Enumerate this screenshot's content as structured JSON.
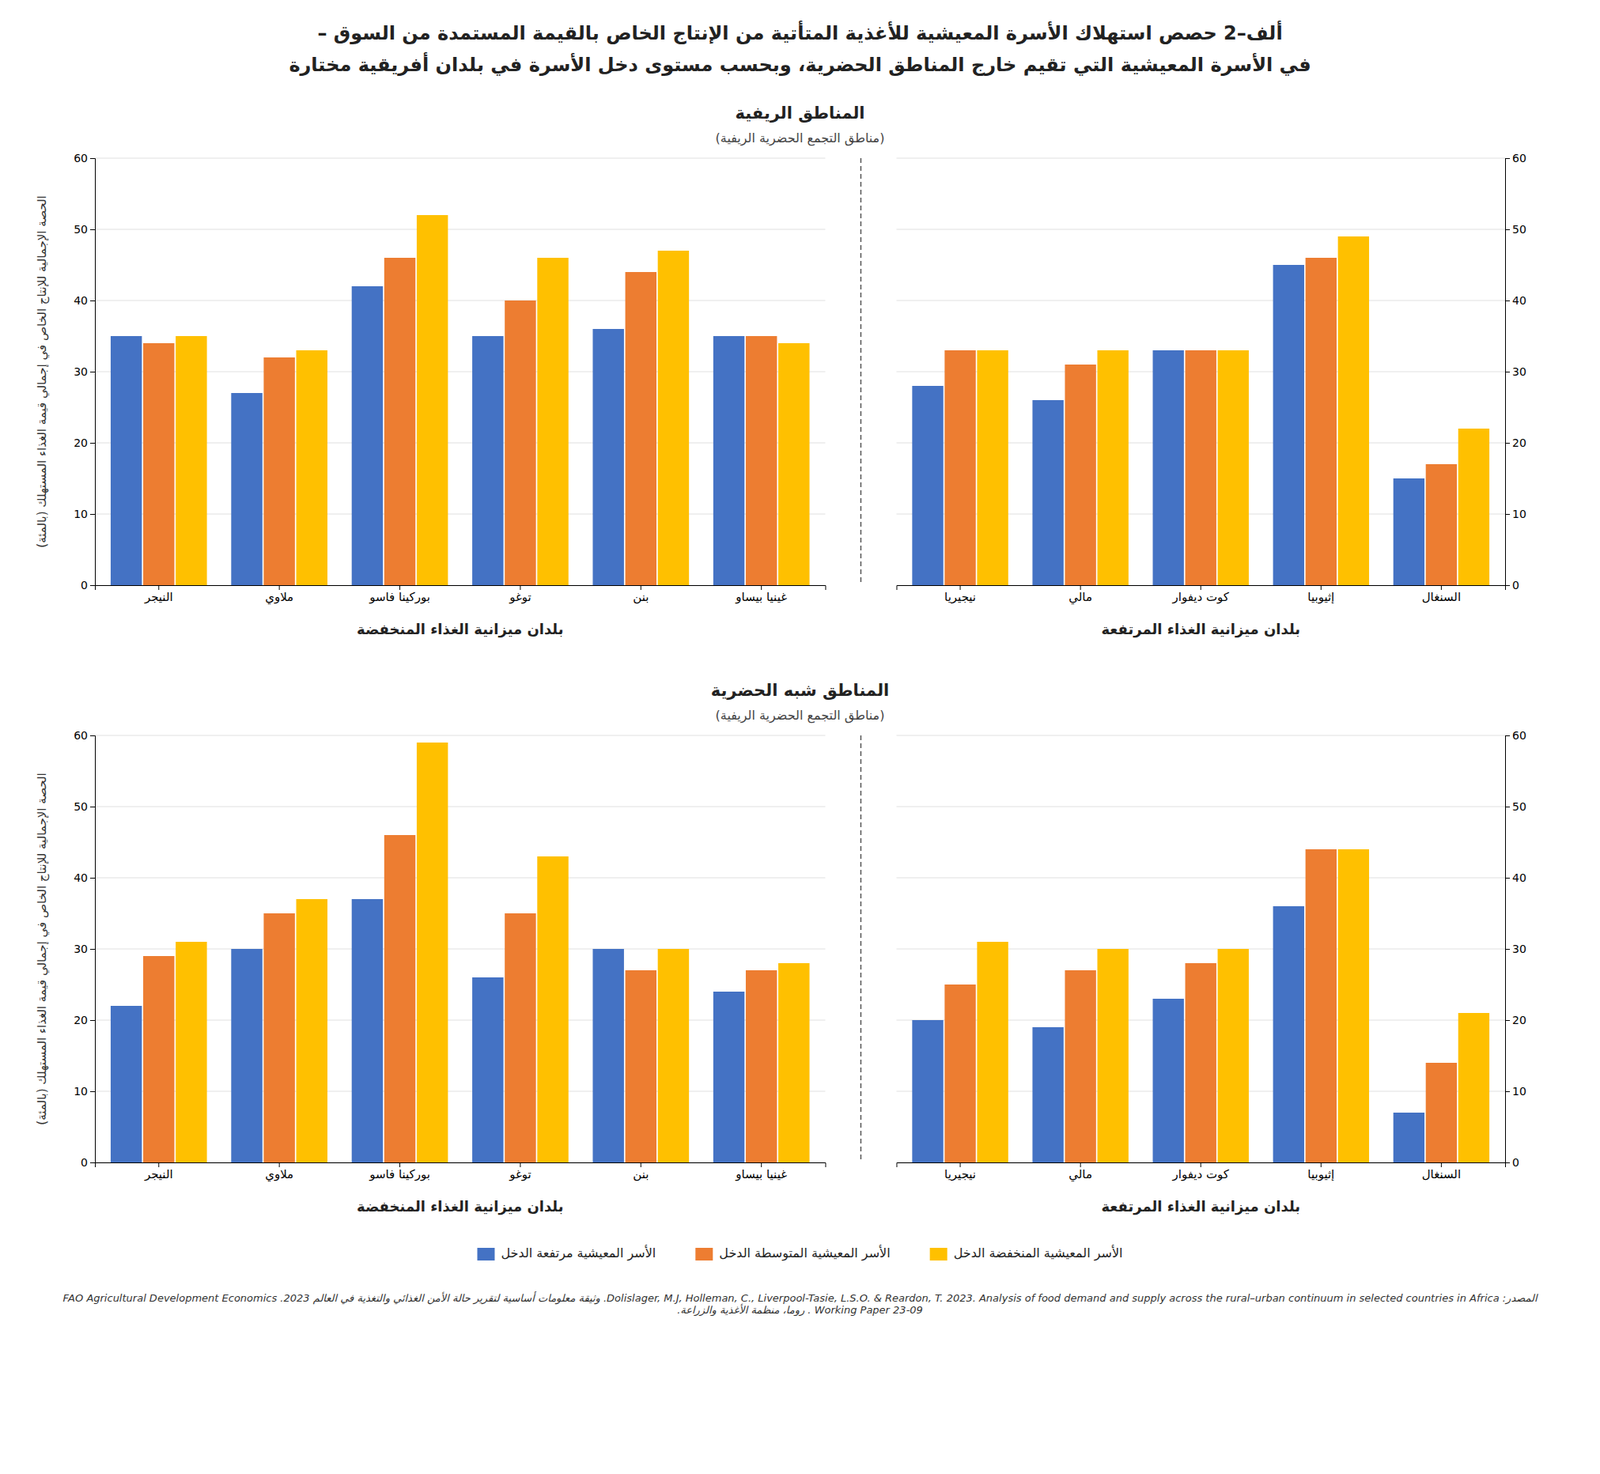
{
  "title": [
    "ألف–2 حصص استهلاك الأسرة المعيشية للأغذية المتأتية من الإنتاج الخاص بالقيمة المستمدة من السوق –",
    "في الأسرة المعيشية التي تقيم خارج المناطق الحضرية، وبحسب مستوى دخل الأسرة في بلدان أفريقية مختارة"
  ],
  "annotations": [
    "المصدر: Dolislager, M.J, Holleman, C., Liverpool-Tasie, L.S.O. & Reardon, T. 2023. Analysis of food demand and supply across the rural–urban continuum in selected countries in Africa. وثيقة معلومات أساسية لتقرير حالة الأمن الغذائي والتغذية في العالم 2023. FAO Agricultural Development Economics Working Paper 23-09 . روما، منظمة الأغذية والزراعة."
  ],
  "chart_data": [
    {
      "type": "bar",
      "title": "المناطق الريفية",
      "subtitle": "(مناطق التجمع الحضرية الريفية)",
      "ylabel": "الحصة الإجمالية للإنتاج الخاص في إجمالي قيمة الغذاء المستهلك (بالمئة)",
      "xlabel": "بلدان ميزانية الغذاء المنخفضة",
      "categories": [
        "النيجر",
        "ملاوي",
        "بوركينا فاسو",
        "توغو",
        "بنن",
        "غينيا بيساو"
      ],
      "series": [
        {
          "name": "الأسر المعيشية مرتفعة الدخل",
          "color": "#4472C4",
          "values": [
            35,
            27,
            42,
            35,
            36,
            35
          ]
        },
        {
          "name": "الأسر المعيشية المتوسطة الدخل",
          "color": "#ED7D31",
          "values": [
            34,
            32,
            46,
            40,
            44,
            35
          ]
        },
        {
          "name": "الأسر المعيشية المنخفضة الدخل",
          "color": "#FFC000",
          "values": [
            35,
            33,
            52,
            46,
            47,
            34
          ]
        }
      ],
      "ylim": [
        0,
        60
      ],
      "yticks": [
        0,
        10,
        20,
        30,
        40,
        50,
        60
      ],
      "grid": true,
      "legend": "bottom"
    },
    {
      "type": "bar",
      "xlabel": "بلدان ميزانية الغذاء المرتفعة",
      "categories": [
        "نيجيريا",
        "مالي",
        "كوت ديفوار",
        "إثيوبيا",
        "السنغال"
      ],
      "series": [
        {
          "color": "#4472C4",
          "values": [
            28,
            26,
            33,
            45,
            15
          ]
        },
        {
          "color": "#ED7D31",
          "values": [
            33,
            31,
            33,
            46,
            17
          ]
        },
        {
          "color": "#FFC000",
          "values": [
            33,
            33,
            33,
            49,
            22
          ]
        }
      ],
      "ylim": [
        0,
        60
      ],
      "yticks": [
        0,
        10,
        20,
        30,
        40,
        50,
        60
      ],
      "grid": true
    },
    {
      "type": "bar",
      "title": "المناطق شبه الحضرية",
      "subtitle": "(مناطق التجمع الحضرية الريفية)",
      "ylabel": "الحصة الإجمالية للإنتاج الخاص في إجمالي قيمة الغذاء المستهلك (بالمئة)",
      "xlabel": "بلدان ميزانية الغذاء المنخفضة",
      "categories": [
        "النيجر",
        "ملاوي",
        "بوركينا فاسو",
        "توغو",
        "بنن",
        "غينيا بيساو"
      ],
      "series": [
        {
          "color": "#4472C4",
          "values": [
            22,
            30,
            37,
            26,
            30,
            24
          ]
        },
        {
          "color": "#ED7D31",
          "values": [
            29,
            35,
            46,
            35,
            27,
            27
          ]
        },
        {
          "color": "#FFC000",
          "values": [
            31,
            37,
            59,
            43,
            30,
            28
          ]
        }
      ],
      "ylim": [
        0,
        60
      ],
      "yticks": [
        0,
        10,
        20,
        30,
        40,
        50,
        60
      ],
      "grid": true
    },
    {
      "type": "bar",
      "xlabel": "بلدان ميزانية الغذاء المرتفعة",
      "categories": [
        "نيجيريا",
        "مالي",
        "كوت ديفوار",
        "إثيوبيا",
        "السنغال"
      ],
      "series": [
        {
          "color": "#4472C4",
          "values": [
            20,
            19,
            23,
            36,
            7
          ]
        },
        {
          "color": "#ED7D31",
          "values": [
            25,
            27,
            28,
            44,
            14
          ]
        },
        {
          "color": "#FFC000",
          "values": [
            31,
            30,
            30,
            44,
            21
          ]
        }
      ],
      "ylim": [
        0,
        60
      ],
      "yticks": [
        0,
        10,
        20,
        30,
        40,
        50,
        60
      ],
      "grid": true
    }
  ]
}
